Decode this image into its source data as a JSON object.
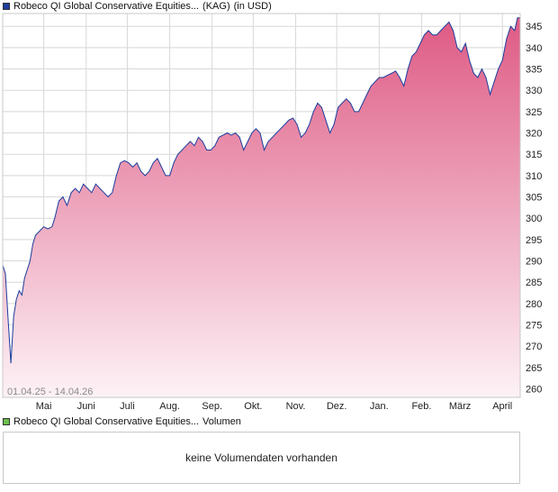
{
  "chart_data": {
    "type": "area",
    "legend": {
      "price_label": "Robeco QI Global Conservative Equities...",
      "price_unit": "(KAG)",
      "price_currency": "(in USD)",
      "volume_label": "Robeco QI Global Conservative Equities...",
      "volume_suffix": "Volumen"
    },
    "date_range": "01.04.25 - 14.04.26",
    "y_ticks": [
      260,
      265,
      270,
      275,
      280,
      285,
      290,
      295,
      300,
      305,
      310,
      315,
      320,
      325,
      330,
      335,
      340,
      345
    ],
    "ylim": [
      258,
      348
    ],
    "xlim": [
      0,
      378
    ],
    "x_ticks": [
      {
        "label": "Mai",
        "day": 30
      },
      {
        "label": "Juni",
        "day": 61
      },
      {
        "label": "Juli",
        "day": 91
      },
      {
        "label": "Aug.",
        "day": 122
      },
      {
        "label": "Sep.",
        "day": 153
      },
      {
        "label": "Okt.",
        "day": 183
      },
      {
        "label": "Nov.",
        "day": 214
      },
      {
        "label": "Dez.",
        "day": 244
      },
      {
        "label": "Jan.",
        "day": 275
      },
      {
        "label": "Feb.",
        "day": 306
      },
      {
        "label": "März",
        "day": 334
      },
      {
        "label": "April",
        "day": 365
      }
    ],
    "series": [
      {
        "points": [
          [
            0,
            289
          ],
          [
            2,
            287
          ],
          [
            4,
            276
          ],
          [
            6,
            266
          ],
          [
            8,
            277
          ],
          [
            10,
            281
          ],
          [
            12,
            283
          ],
          [
            14,
            282
          ],
          [
            16,
            286
          ],
          [
            18,
            288
          ],
          [
            20,
            290
          ],
          [
            22,
            294
          ],
          [
            24,
            296
          ],
          [
            27,
            297
          ],
          [
            30,
            298
          ],
          [
            33,
            297.5
          ],
          [
            36,
            298
          ],
          [
            38,
            300
          ],
          [
            41,
            304
          ],
          [
            44,
            305
          ],
          [
            47,
            303
          ],
          [
            50,
            306
          ],
          [
            53,
            307
          ],
          [
            56,
            306
          ],
          [
            59,
            308
          ],
          [
            62,
            307
          ],
          [
            65,
            306
          ],
          [
            68,
            308
          ],
          [
            71,
            307
          ],
          [
            74,
            306
          ],
          [
            77,
            305
          ],
          [
            80,
            306
          ],
          [
            83,
            310
          ],
          [
            86,
            313
          ],
          [
            89,
            313.5
          ],
          [
            92,
            313
          ],
          [
            95,
            312
          ],
          [
            98,
            313
          ],
          [
            101,
            311
          ],
          [
            104,
            310
          ],
          [
            107,
            311
          ],
          [
            110,
            313
          ],
          [
            113,
            314
          ],
          [
            116,
            312
          ],
          [
            119,
            310
          ],
          [
            122,
            310
          ],
          [
            125,
            313
          ],
          [
            128,
            315
          ],
          [
            131,
            316
          ],
          [
            134,
            317
          ],
          [
            137,
            318
          ],
          [
            140,
            317
          ],
          [
            143,
            319
          ],
          [
            146,
            318
          ],
          [
            149,
            316
          ],
          [
            152,
            316
          ],
          [
            155,
            317
          ],
          [
            158,
            319
          ],
          [
            161,
            319.5
          ],
          [
            164,
            320
          ],
          [
            167,
            319.5
          ],
          [
            170,
            320
          ],
          [
            173,
            319
          ],
          [
            176,
            316
          ],
          [
            179,
            318
          ],
          [
            182,
            320
          ],
          [
            185,
            321
          ],
          [
            188,
            320
          ],
          [
            191,
            316
          ],
          [
            194,
            318
          ],
          [
            197,
            319
          ],
          [
            200,
            320
          ],
          [
            203,
            321
          ],
          [
            206,
            322
          ],
          [
            209,
            323
          ],
          [
            212,
            323.5
          ],
          [
            215,
            322
          ],
          [
            218,
            319
          ],
          [
            221,
            320
          ],
          [
            224,
            322
          ],
          [
            227,
            325
          ],
          [
            230,
            327
          ],
          [
            233,
            326
          ],
          [
            236,
            323
          ],
          [
            239,
            320
          ],
          [
            242,
            322
          ],
          [
            245,
            326
          ],
          [
            248,
            327
          ],
          [
            251,
            328
          ],
          [
            254,
            327
          ],
          [
            257,
            325
          ],
          [
            260,
            325
          ],
          [
            263,
            327
          ],
          [
            266,
            329
          ],
          [
            269,
            331
          ],
          [
            272,
            332
          ],
          [
            275,
            333
          ],
          [
            278,
            333
          ],
          [
            281,
            333.5
          ],
          [
            284,
            334
          ],
          [
            287,
            334.5
          ],
          [
            290,
            333
          ],
          [
            293,
            331
          ],
          [
            296,
            335
          ],
          [
            299,
            338
          ],
          [
            302,
            339
          ],
          [
            305,
            341
          ],
          [
            308,
            343
          ],
          [
            311,
            344
          ],
          [
            314,
            343
          ],
          [
            317,
            343
          ],
          [
            320,
            344
          ],
          [
            323,
            345
          ],
          [
            326,
            346
          ],
          [
            329,
            344
          ],
          [
            332,
            340
          ],
          [
            335,
            339
          ],
          [
            338,
            341
          ],
          [
            341,
            337
          ],
          [
            344,
            334
          ],
          [
            347,
            333
          ],
          [
            350,
            335
          ],
          [
            353,
            333
          ],
          [
            356,
            329
          ],
          [
            359,
            332
          ],
          [
            362,
            335
          ],
          [
            365,
            337
          ],
          [
            368,
            342
          ],
          [
            371,
            345
          ],
          [
            374,
            344
          ],
          [
            376,
            347
          ],
          [
            378,
            347
          ]
        ]
      }
    ]
  },
  "volume_panel": {
    "message": "keine Volumendaten vorhanden"
  },
  "colors": {
    "line": "#1c3d9c",
    "fill_top": "#de5a84",
    "fill_bottom": "#fdf2f6",
    "grid": "#d8d8d8",
    "frame": "#c8c8c8"
  }
}
